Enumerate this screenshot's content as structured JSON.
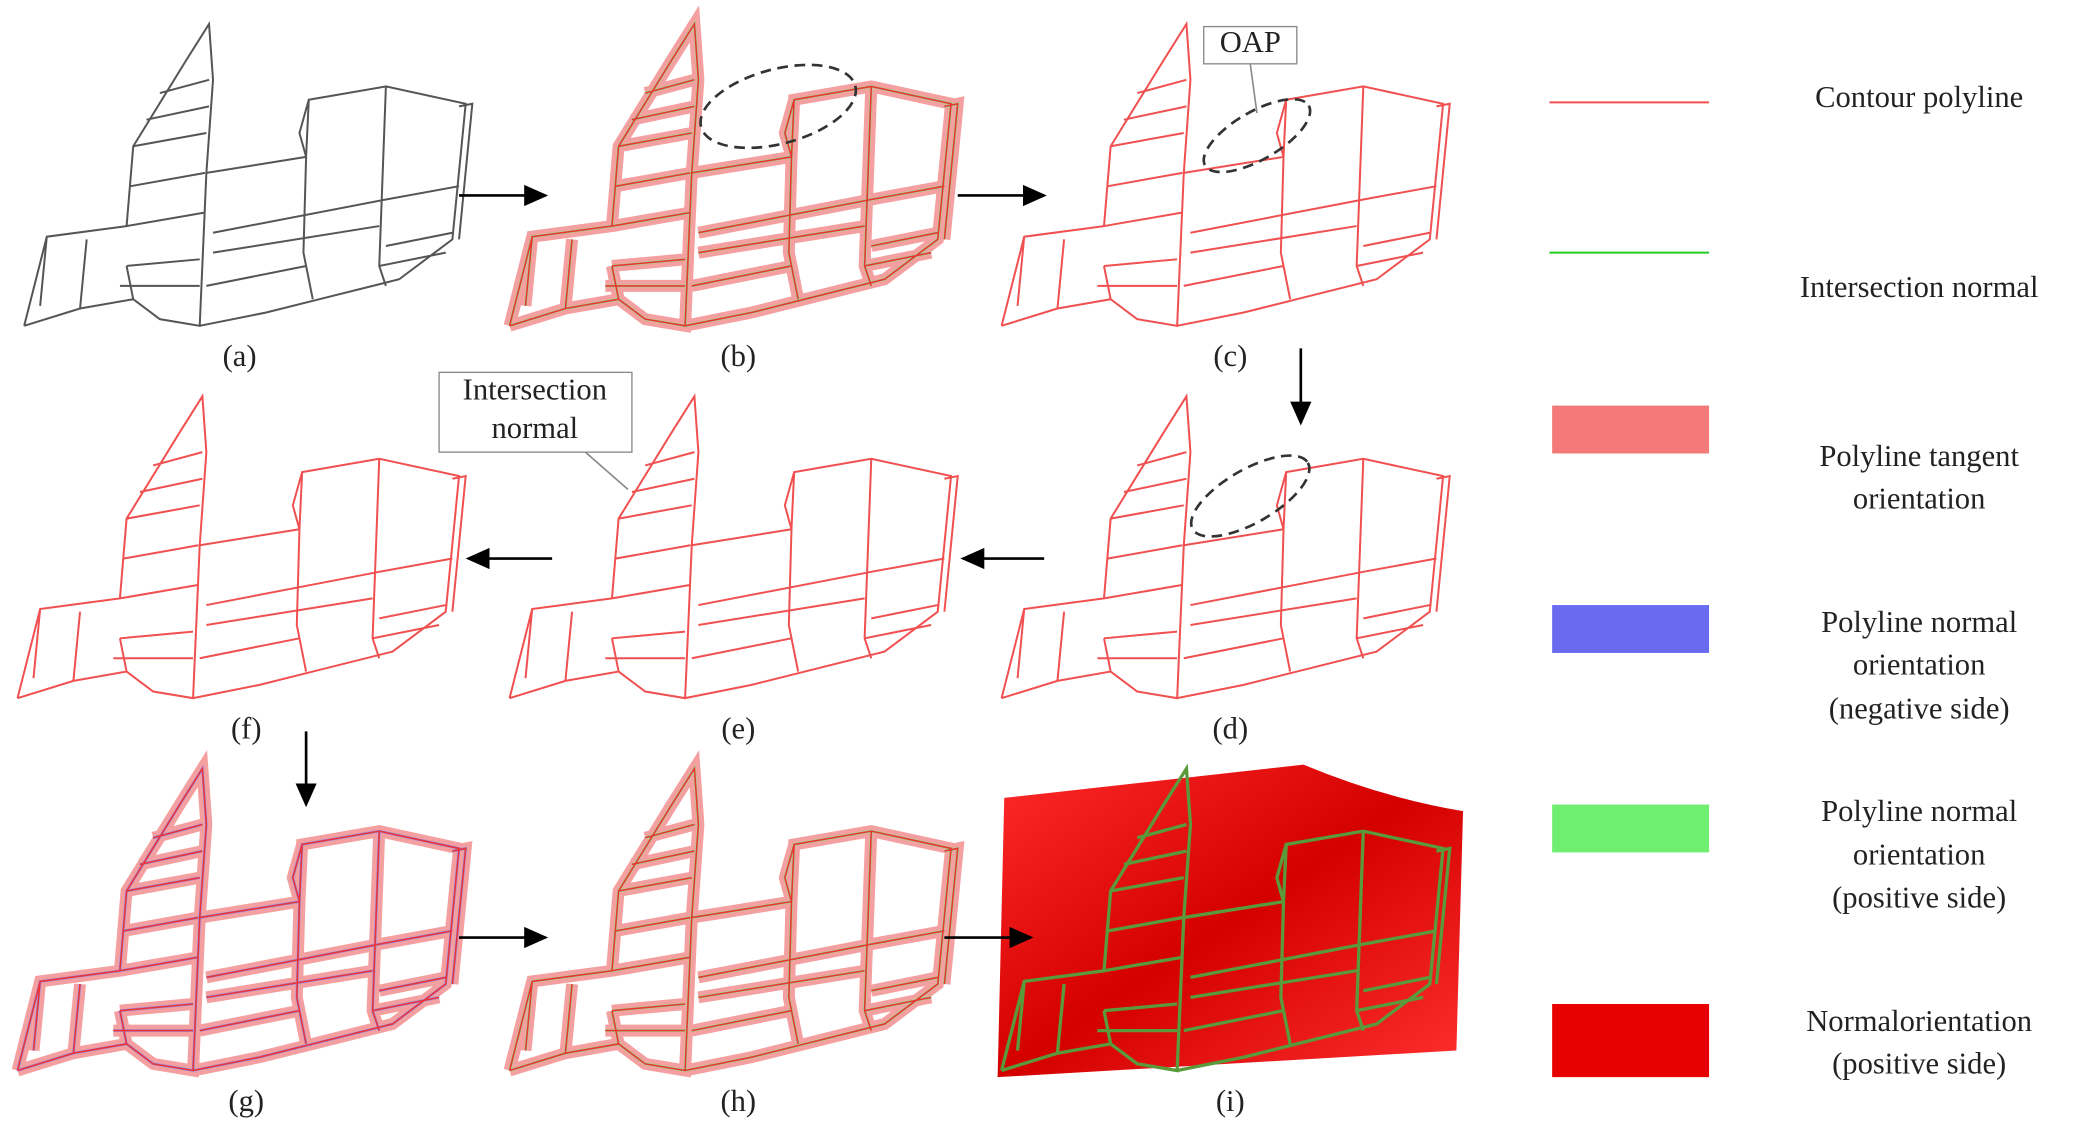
{
  "panels": [
    {
      "label": "(a)"
    },
    {
      "label": "(b)"
    },
    {
      "label": "(c)"
    },
    {
      "label": "(d)"
    },
    {
      "label": "(e)"
    },
    {
      "label": "(f)"
    },
    {
      "label": "(g)"
    },
    {
      "label": "(h)"
    },
    {
      "label": "(i)"
    }
  ],
  "annotations": {
    "oap": "OAP",
    "intersection_normal": [
      "Intersection",
      "normal"
    ]
  },
  "legend": [
    {
      "lines": [
        "Contour polyline"
      ]
    },
    {
      "lines": [
        "Intersection normal"
      ]
    },
    {
      "lines": [
        "Polyline tangent",
        "orientation"
      ]
    },
    {
      "lines": [
        "Polyline normal",
        "orientation",
        "(negative side)"
      ]
    },
    {
      "lines": [
        "Polyline normal",
        "orientation",
        "(positive side)"
      ]
    },
    {
      "lines": [
        "Normalorientation",
        "(positive side)"
      ]
    }
  ]
}
